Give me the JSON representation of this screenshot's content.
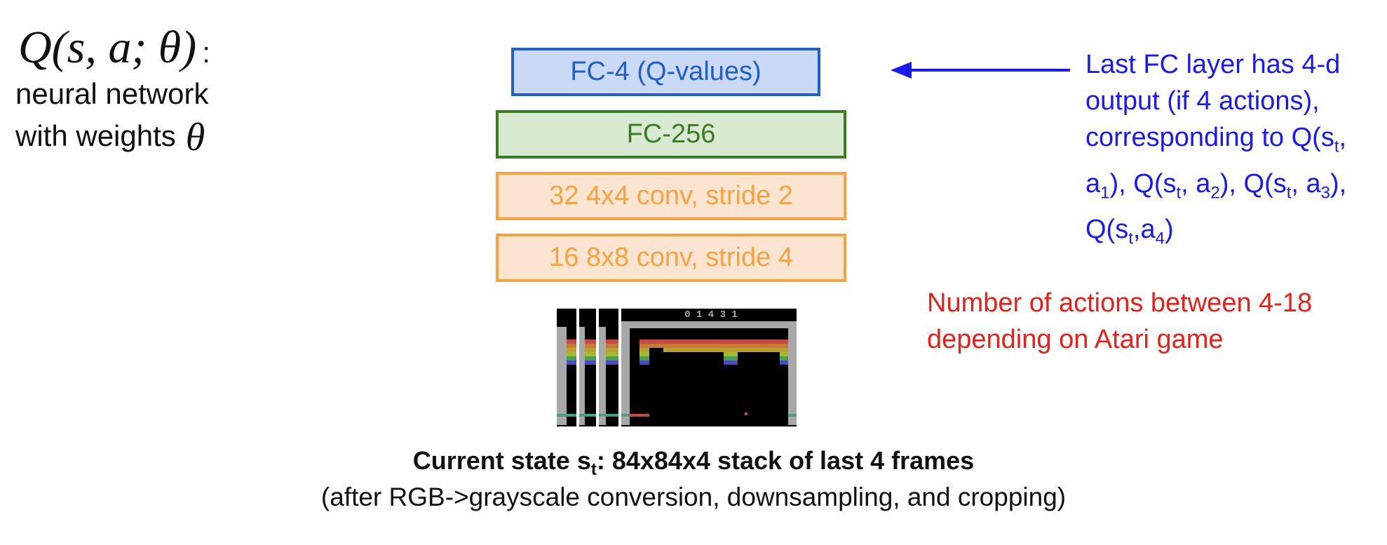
{
  "left": {
    "formula": "Q(s, a; θ)",
    "formula_colon": ":",
    "line1": "neural network",
    "line2": "with weights",
    "theta_symbol": "θ"
  },
  "layers": [
    {
      "label": "FC-4 (Q-values)",
      "color": "#1f5fc8"
    },
    {
      "label": "FC-256",
      "color": "#3c7d22"
    },
    {
      "label": "32 4x4 conv, stride 2",
      "color": "#f6a340"
    },
    {
      "label": "16 8x8 conv, stride 4",
      "color": "#f6a340"
    }
  ],
  "annotation_blue": {
    "line1": "Last FC layer has 4-d",
    "line2": "output (if 4 actions),",
    "line3": "corresponding to Q(s",
    "line4_a": "a",
    "line4_b": "), Q(s",
    "line4_c": ", a",
    "line4_d": "), Q(s",
    "line4_e": ", a",
    "line4_f": "),",
    "line5_a": "Q(s",
    "line5_b": ",a",
    "line5_c": ")",
    "sub_t": "t",
    "sub_1": "1",
    "sub_2": "2",
    "sub_3": "3",
    "sub_4": "4",
    "color": "#1a1af0"
  },
  "annotation_red": {
    "line1": "Number of actions between 4-18",
    "line2": "depending on Atari game",
    "color": "#e8201a"
  },
  "frames": {
    "score_text": "0 1 4 3 1",
    "count": 4
  },
  "caption": {
    "main_a": "Current state s",
    "main_sub": "t",
    "main_b": ": 84x84x4 stack of last 4 frames",
    "sub": "(after RGB->grayscale conversion, downsampling, and cropping)"
  }
}
